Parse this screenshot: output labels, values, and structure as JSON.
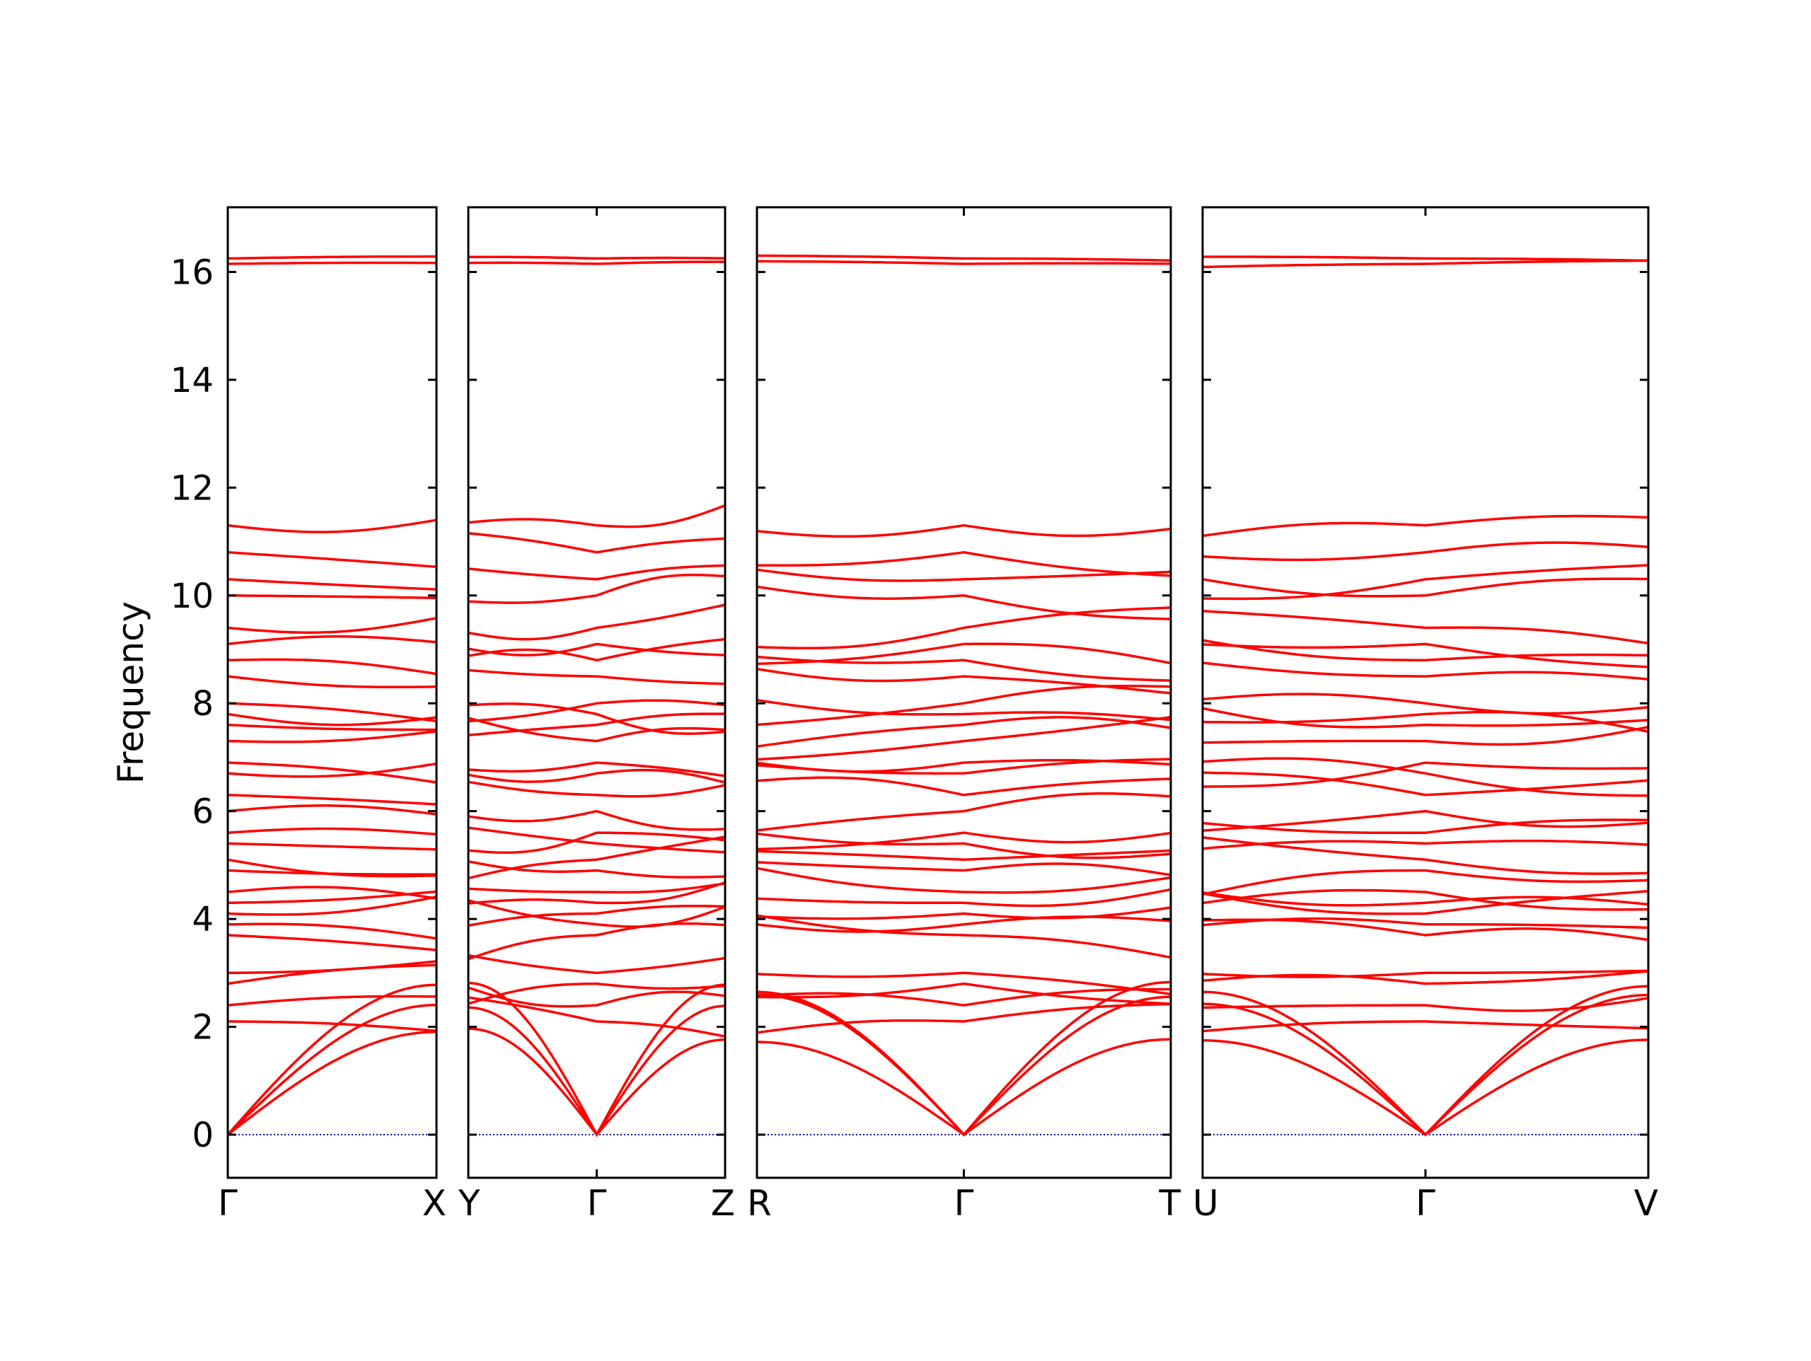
{
  "chart_data": {
    "type": "line",
    "title": "",
    "ylabel": "Frequency",
    "ylim": [
      -0.8,
      17.2
    ],
    "yticks": [
      0,
      2,
      4,
      6,
      8,
      10,
      12,
      14,
      16
    ],
    "ytick_labels": [
      "0",
      "2",
      "4",
      "6",
      "8",
      "10",
      "12",
      "14",
      "16"
    ],
    "line_color": "#ff0000",
    "zero_line_color": "#0000aa",
    "grid": false,
    "panels": [
      {
        "path": [
          "Γ",
          "X"
        ],
        "labels": [
          "Γ",
          "X"
        ]
      },
      {
        "path": [
          "Y",
          "Γ",
          "Z"
        ],
        "labels": [
          "Y",
          "Γ",
          "Z"
        ]
      },
      {
        "path": [
          "R",
          "Γ",
          "T"
        ],
        "labels": [
          "R",
          "Γ",
          "T"
        ]
      },
      {
        "path": [
          "U",
          "Γ",
          "V"
        ],
        "labels": [
          "U",
          "Γ",
          "V"
        ]
      }
    ],
    "optical_bands_at_gamma": [
      2.1,
      2.4,
      2.8,
      3.0,
      3.7,
      3.9,
      4.1,
      4.3,
      4.5,
      4.9,
      5.1,
      5.4,
      5.6,
      6.0,
      6.3,
      6.7,
      6.9,
      7.3,
      7.6,
      7.8,
      8.0,
      8.5,
      8.8,
      9.1,
      9.4,
      10.0,
      10.3,
      10.8,
      11.3,
      16.15,
      16.25
    ],
    "acoustic_bands_at_boundary": [
      2.1,
      2.6,
      2.7
    ]
  }
}
